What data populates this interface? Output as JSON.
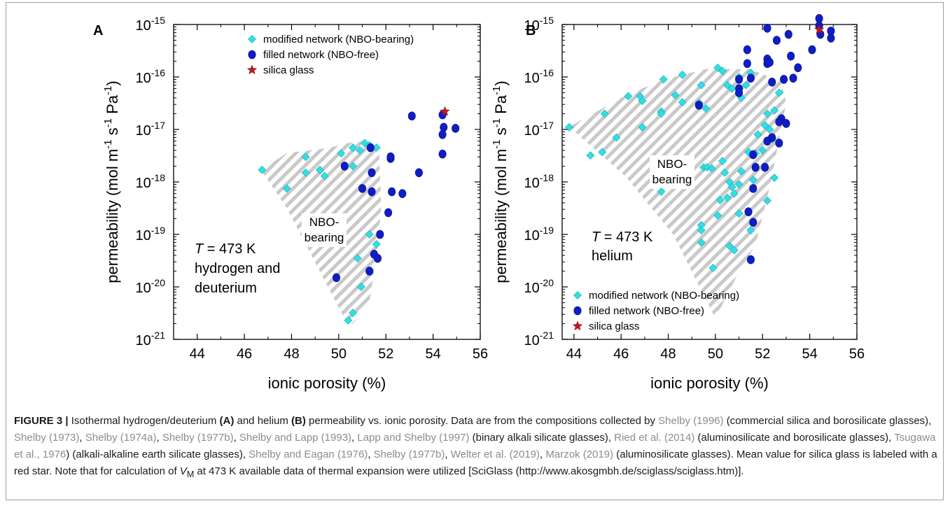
{
  "chart_data": [
    {
      "type": "scatter",
      "panel_label": "A",
      "xlabel": "ionic porosity (%)",
      "ylabel_parts": [
        "permeability (mol m",
        "-1",
        " s",
        "-1",
        " Pa",
        "-1",
        ")"
      ],
      "xlim": [
        43,
        56
      ],
      "ylim_log10": [
        -21,
        -15
      ],
      "y_scale": "log",
      "x_ticks": [
        44,
        46,
        48,
        50,
        52,
        54,
        56
      ],
      "y_tick_exponents": [
        -21,
        -20,
        -19,
        -18,
        -17,
        -16,
        -15
      ],
      "y_tick_base": "10",
      "legend": {
        "placement": "top-right",
        "entries": [
          "modified network (NBO-bearing)",
          "filled network (NBO-free)",
          "silica glass"
        ]
      },
      "annotation_lines": [
        "T = 473 K",
        "hydrogen and",
        "deuterium"
      ],
      "region_label": [
        "NBO-",
        "bearing"
      ],
      "region_polygon": [
        [
          46.7,
          -17.77
        ],
        [
          47.8,
          -17.45
        ],
        [
          49.6,
          -17.35
        ],
        [
          50.5,
          -17.25
        ],
        [
          51.2,
          -17.22
        ],
        [
          51.7,
          -17.33
        ],
        [
          51.8,
          -18.5
        ],
        [
          51.6,
          -19.4
        ],
        [
          51.3,
          -20.3
        ],
        [
          50.6,
          -20.7
        ],
        [
          50.3,
          -20.65
        ],
        [
          47.8,
          -18.5
        ]
      ],
      "series": [
        {
          "name": "modified network (NBO-bearing)",
          "marker": "diamond",
          "color": "#2ee0e6",
          "points": [
            [
              46.75,
              1.7e-18
            ],
            [
              47.8,
              7.5e-19
            ],
            [
              48.6,
              3e-18
            ],
            [
              48.6,
              1.5e-18
            ],
            [
              49.2,
              1.7e-18
            ],
            [
              49.4,
              1.3e-18
            ],
            [
              50.1,
              3.5e-18
            ],
            [
              50.6,
              2e-18
            ],
            [
              50.6,
              4.5e-18
            ],
            [
              50.9,
              4e-18
            ],
            [
              51.1,
              5.5e-18
            ],
            [
              51.3,
              5e-18
            ],
            [
              51.6,
              4.5e-18
            ],
            [
              51.3,
              1e-19
            ],
            [
              51.6,
              6.5e-20
            ],
            [
              50.8,
              3.5e-20
            ],
            [
              50.95,
              1e-20
            ],
            [
              50.6,
              3.2e-21
            ],
            [
              50.4,
              2.3e-21
            ]
          ]
        },
        {
          "name": "filled network (NBO-free)",
          "marker": "circle",
          "color": "#0d1ec7",
          "points": [
            [
              50.25,
              2e-18
            ],
            [
              51.0,
              7.5e-19
            ],
            [
              51.4,
              6.5e-19
            ],
            [
              51.4,
              1.5e-18
            ],
            [
              51.35,
              4.5e-18
            ],
            [
              52.2,
              2.8e-18
            ],
            [
              52.2,
              3e-18
            ],
            [
              52.25,
              6.5e-19
            ],
            [
              52.1,
              2.6e-19
            ],
            [
              52.7,
              6e-19
            ],
            [
              53.1,
              1.8e-17
            ],
            [
              53.4,
              1.5e-18
            ],
            [
              51.75,
              1e-19
            ],
            [
              51.5,
              4.2e-20
            ],
            [
              51.65,
              3.5e-20
            ],
            [
              51.3,
              2e-20
            ],
            [
              49.9,
              1.5e-20
            ],
            [
              54.4,
              1.9e-17
            ],
            [
              54.45,
              1.1e-17
            ],
            [
              54.4,
              8e-18
            ],
            [
              54.4,
              3.4e-18
            ],
            [
              54.95,
              1.05e-17
            ]
          ]
        },
        {
          "name": "silica glass",
          "marker": "star",
          "color": "#c0191d",
          "points": [
            [
              54.5,
              2.2e-17
            ]
          ]
        }
      ]
    },
    {
      "type": "scatter",
      "panel_label": "B",
      "xlabel": "ionic porosity (%)",
      "ylabel_parts": [
        "permeability (mol m",
        "-1",
        " s",
        "-1",
        " Pa",
        "-1",
        ")"
      ],
      "xlim": [
        43.5,
        56
      ],
      "ylim_log10": [
        -21,
        -15
      ],
      "y_scale": "log",
      "x_ticks": [
        44,
        46,
        48,
        50,
        52,
        54,
        56
      ],
      "y_tick_exponents": [
        -21,
        -20,
        -19,
        -18,
        -17,
        -16,
        -15
      ],
      "y_tick_base": "10",
      "legend": {
        "placement": "bottom-center",
        "entries": [
          "modified network (NBO-bearing)",
          "filled network (NBO-free)",
          "silica glass"
        ]
      },
      "annotation_lines": [
        "T = 473 K",
        "helium"
      ],
      "region_label": [
        "NBO-",
        "bearing"
      ],
      "region_polygon": [
        [
          43.8,
          -16.95
        ],
        [
          46.2,
          -16.35
        ],
        [
          47.8,
          -16.05
        ],
        [
          49.6,
          -15.85
        ],
        [
          51.5,
          -15.85
        ],
        [
          52.8,
          -16.1
        ],
        [
          53.0,
          -16.5
        ],
        [
          52.7,
          -17.2
        ],
        [
          52.3,
          -18.1
        ],
        [
          51.7,
          -19.2
        ],
        [
          50.9,
          -19.8
        ],
        [
          50.0,
          -20.6
        ],
        [
          48.2,
          -19.0
        ],
        [
          46.2,
          -17.9
        ]
      ],
      "series": [
        {
          "name": "modified network (NBO-bearing)",
          "marker": "diamond",
          "color": "#2ee0e6",
          "points": [
            [
              43.8,
              1.1e-17
            ],
            [
              44.7,
              3.2e-18
            ],
            [
              45.2,
              3.7e-18
            ],
            [
              45.3,
              2e-17
            ],
            [
              45.8,
              7e-18
            ],
            [
              46.3,
              4.3e-17
            ],
            [
              46.8,
              4.3e-17
            ],
            [
              46.9,
              3.5e-17
            ],
            [
              46.9,
              1.1e-17
            ],
            [
              47.7,
              2.2e-17
            ],
            [
              47.7,
              2e-17
            ],
            [
              47.8,
              9e-17
            ],
            [
              47.7,
              6.5e-19
            ],
            [
              48.3,
              4.5e-17
            ],
            [
              48.6,
              3.3e-17
            ],
            [
              48.6,
              1.1e-16
            ],
            [
              49.3,
              3.2e-17
            ],
            [
              49.4,
              7e-17
            ],
            [
              49.6,
              2.5e-17
            ],
            [
              49.5,
              1.9e-18
            ],
            [
              49.65,
              1.9e-18
            ],
            [
              49.85,
              1.8e-18
            ],
            [
              50.1,
              1.5e-16
            ],
            [
              50.3,
              1.3e-16
            ],
            [
              50.5,
              7e-17
            ],
            [
              50.7,
              6e-17
            ],
            [
              51.0,
              1e-16
            ],
            [
              51.3,
              7e-17
            ],
            [
              51.5,
              1.2e-16
            ],
            [
              51.1,
              4e-17
            ],
            [
              50.3,
              2.5e-18
            ],
            [
              50.4,
              1.5e-18
            ],
            [
              50.6,
              1e-18
            ],
            [
              50.7,
              8e-19
            ],
            [
              50.8,
              6e-19
            ],
            [
              51.0,
              9e-19
            ],
            [
              51.1,
              1.6e-18
            ],
            [
              51.4,
              3.7e-18
            ],
            [
              51.6,
              1.1e-18
            ],
            [
              51.7,
              3.5e-18
            ],
            [
              51.8,
              8e-18
            ],
            [
              52.0,
              4e-18
            ],
            [
              52.1,
              1.9e-18
            ],
            [
              52.3,
              1e-17
            ],
            [
              52.1,
              1.2e-17
            ],
            [
              52.5,
              1.2e-18
            ],
            [
              52.2,
              4.4e-19
            ],
            [
              52.5,
              2.3e-17
            ],
            [
              52.7,
              5e-17
            ],
            [
              52.4,
              6.5e-18
            ],
            [
              52.2,
              2e-17
            ],
            [
              50.2,
              4.5e-19
            ],
            [
              50.5,
              5e-19
            ],
            [
              50.1,
              2.3e-19
            ],
            [
              49.4,
              1.5e-19
            ],
            [
              49.4,
              1.2e-19
            ],
            [
              49.4,
              7e-20
            ],
            [
              50.6,
              6e-20
            ],
            [
              50.8,
              5e-20
            ],
            [
              51.5,
              1.2e-19
            ],
            [
              51.0,
              2.5e-19
            ],
            [
              49.9,
              2.3e-20
            ]
          ]
        },
        {
          "name": "filled network (NBO-free)",
          "marker": "circle",
          "color": "#0d1ec7",
          "points": [
            [
              49.3,
              2.9e-17
            ],
            [
              51.0,
              9e-17
            ],
            [
              51.0,
              6e-17
            ],
            [
              51.0,
              5e-17
            ],
            [
              51.35,
              3.3e-16
            ],
            [
              51.35,
              1.8e-16
            ],
            [
              51.5,
              9.5e-17
            ],
            [
              52.2,
              8.5e-16
            ],
            [
              52.2,
              2.2e-16
            ],
            [
              52.2,
              1.8e-16
            ],
            [
              52.3,
              1.9e-16
            ],
            [
              52.4,
              8e-17
            ],
            [
              52.6,
              5e-16
            ],
            [
              52.8,
              1.6e-17
            ],
            [
              52.7,
              1.4e-17
            ],
            [
              52.9,
              9e-17
            ],
            [
              53.0,
              1.3e-17
            ],
            [
              53.1,
              6.5e-16
            ],
            [
              53.2,
              2.5e-16
            ],
            [
              53.3,
              9.5e-17
            ],
            [
              53.5,
              1.5e-16
            ],
            [
              54.1,
              3.3e-16
            ],
            [
              54.4,
              1.3e-15
            ],
            [
              54.4,
              9.5e-16
            ],
            [
              54.45,
              6.5e-16
            ],
            [
              54.9,
              7.5e-16
            ],
            [
              54.9,
              5.5e-16
            ],
            [
              52.7,
              5.5e-18
            ],
            [
              52.4,
              7e-18
            ],
            [
              52.2,
              6e-18
            ],
            [
              52.1,
              1.9e-18
            ],
            [
              51.6,
              7.5e-19
            ],
            [
              51.6,
              1.7e-19
            ],
            [
              51.4,
              2.7e-19
            ],
            [
              51.5,
              3.3e-20
            ],
            [
              51.7,
              1.9e-18
            ],
            [
              51.6,
              3.3e-18
            ]
          ]
        },
        {
          "name": "silica glass",
          "marker": "star",
          "color": "#c0191d",
          "points": [
            [
              54.4,
              8e-16
            ]
          ]
        }
      ]
    }
  ],
  "caption_spans": [
    {
      "text": "FIGURE 3 | ",
      "style": "fig-label"
    },
    {
      "text": "Isothermal hydrogen/deuterium ",
      "style": ""
    },
    {
      "text": "(A)",
      "style": "bold"
    },
    {
      "text": " and helium ",
      "style": ""
    },
    {
      "text": "(B)",
      "style": "bold"
    },
    {
      "text": " permeability vs. ionic porosity. Data are from the compositions collected by ",
      "style": ""
    },
    {
      "text": "Shelby (1996)",
      "style": "ref"
    },
    {
      "text": " (commercial silica and borosilicate glasses), ",
      "style": ""
    },
    {
      "text": "Shelby (1973)",
      "style": "ref"
    },
    {
      "text": ", ",
      "style": ""
    },
    {
      "text": "Shelby (1974a)",
      "style": "ref"
    },
    {
      "text": ", ",
      "style": ""
    },
    {
      "text": "Shelby (1977b)",
      "style": "ref"
    },
    {
      "text": ", ",
      "style": ""
    },
    {
      "text": "Shelby and Lapp (1993)",
      "style": "ref"
    },
    {
      "text": ", ",
      "style": ""
    },
    {
      "text": "Lapp and Shelby (1997)",
      "style": "ref"
    },
    {
      "text": " (binary alkali silicate glasses), ",
      "style": ""
    },
    {
      "text": "Ried et al. (2014)",
      "style": "ref"
    },
    {
      "text": " (aluminosilicate and borosilicate glasses), ",
      "style": ""
    },
    {
      "text": "Tsugawa et al., 1976",
      "style": "ref"
    },
    {
      "text": ") (alkali-alkaline earth silicate glasses), ",
      "style": ""
    },
    {
      "text": "Shelby and Eagan (1976)",
      "style": "ref"
    },
    {
      "text": ", ",
      "style": ""
    },
    {
      "text": "Shelby (1977b)",
      "style": "ref"
    },
    {
      "text": ", ",
      "style": ""
    },
    {
      "text": "Welter et al. (2019)",
      "style": "ref"
    },
    {
      "text": ", ",
      "style": ""
    },
    {
      "text": "Marzok (2019)",
      "style": "ref"
    },
    {
      "text": " (aluminosilicate glasses). Mean value for silica glass is labeled with a red star. Note that for calculation of ",
      "style": ""
    },
    {
      "text": "V",
      "style": "ital"
    },
    {
      "text": "M",
      "style": "sub"
    },
    {
      "text": " at 473 K available data of thermal expansion were utilized [SciGlass (http://www.akosgmbh.de/sciglass/sciglass.htm)].",
      "style": ""
    }
  ]
}
